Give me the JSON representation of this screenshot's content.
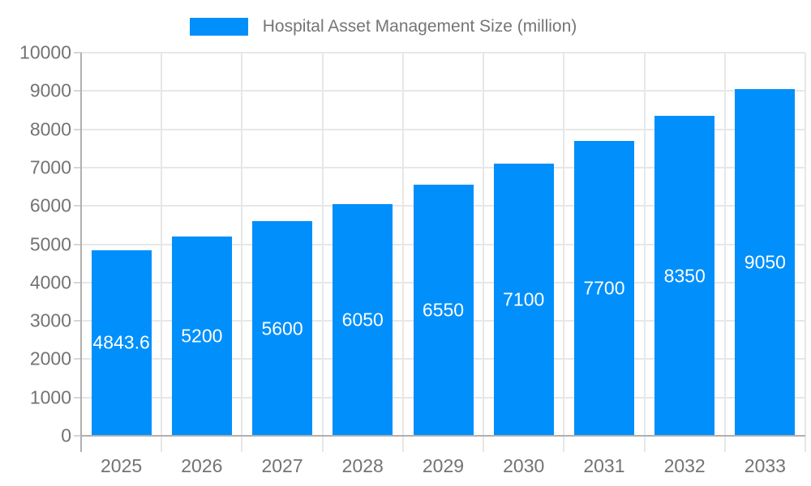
{
  "chart_data": {
    "type": "bar",
    "title": "Hospital Asset Management Size (million)",
    "legend": {
      "label": "Hospital Asset Management Size (million)",
      "position": "top"
    },
    "categories": [
      "2025",
      "2026",
      "2027",
      "2028",
      "2029",
      "2030",
      "2031",
      "2032",
      "2033"
    ],
    "series": [
      {
        "name": "Hospital Asset Management Size (million)",
        "values": [
          4843.6,
          5200,
          5600,
          6050,
          6550,
          7100,
          7700,
          8350,
          9050
        ]
      }
    ],
    "bar_value_labels": [
      "4843.6",
      "5200",
      "5600",
      "6050",
      "6550",
      "7100",
      "7700",
      "8350",
      "9050"
    ],
    "xlabel": "",
    "ylabel": "",
    "ylim": [
      0,
      10000
    ],
    "y_ticks": [
      0,
      1000,
      2000,
      3000,
      4000,
      5000,
      6000,
      7000,
      8000,
      9000,
      10000
    ],
    "grid": "horizontal and vertical light gray lines",
    "colors": {
      "bar": "#008FFB",
      "bar_label_text": "#ffffff",
      "axis_label_text": "#737373",
      "legend_text": "#757575",
      "grid_line": "#e7e7e7",
      "axis_line": "#b0b0b0"
    }
  }
}
